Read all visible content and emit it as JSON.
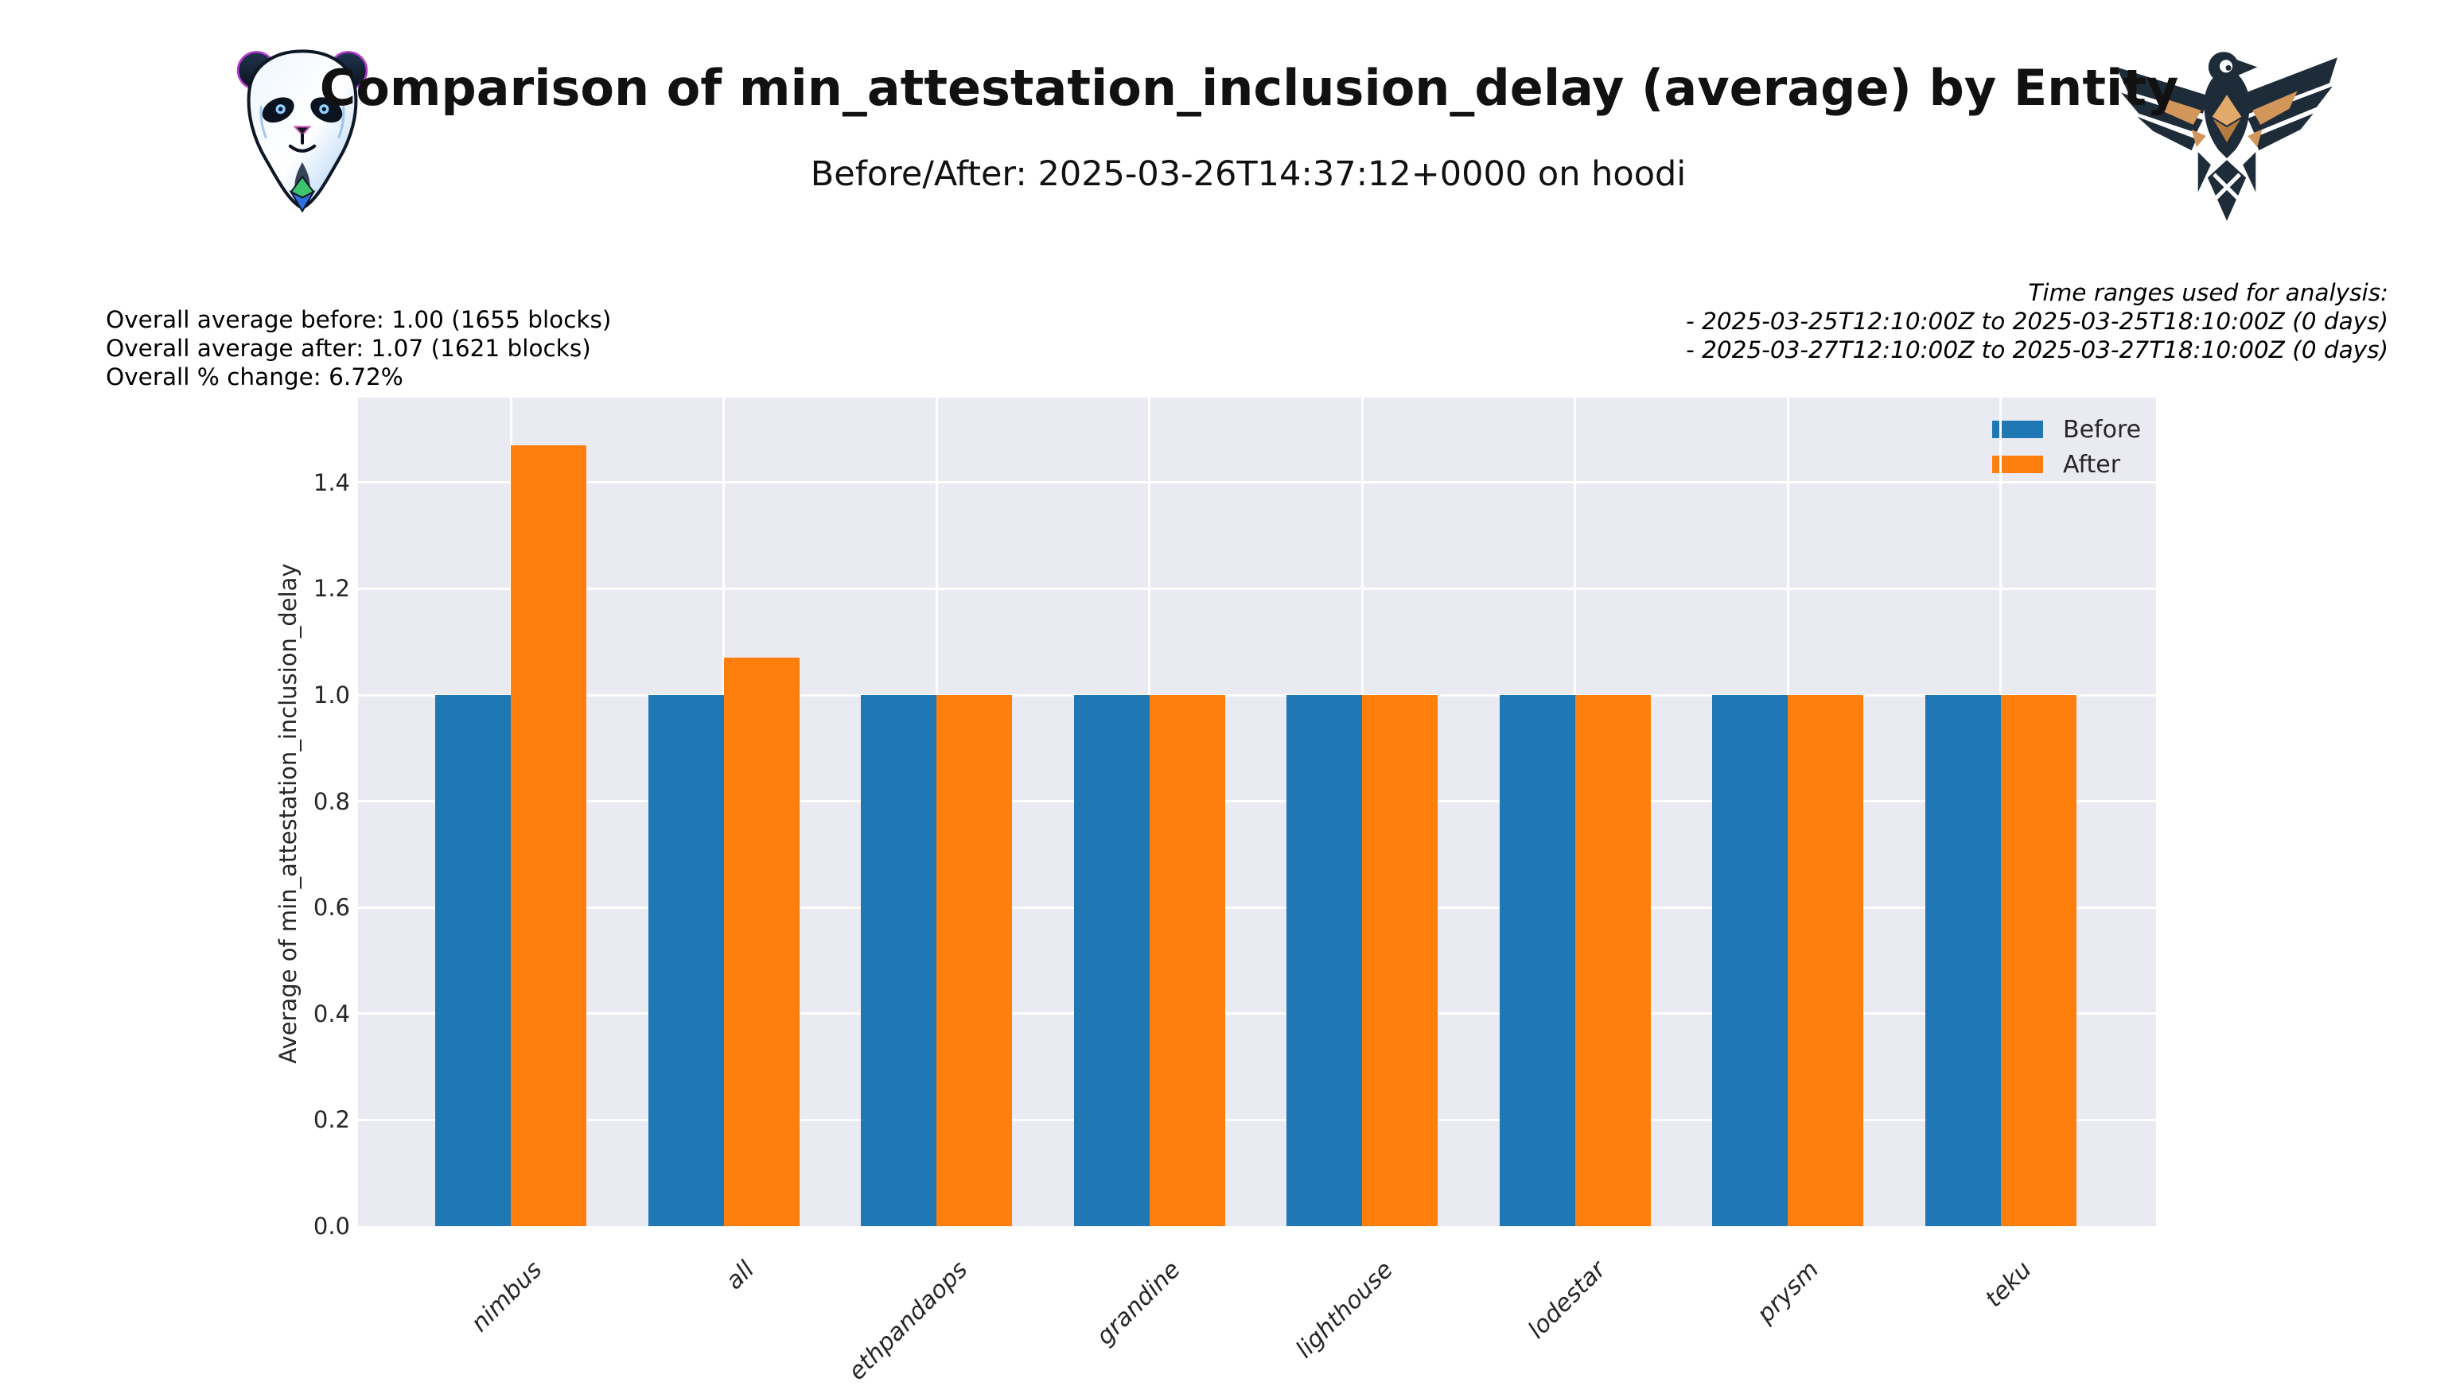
{
  "header": {
    "title": "Comparison of min_attestation_inclusion_delay (average) by Entity",
    "subtitle": "Before/After: 2025-03-26T14:37:12+0000 on hoodi"
  },
  "stats": {
    "line1": "Overall average before: 1.00 (1655 blocks)",
    "line2": "Overall average after: 1.07 (1621 blocks)",
    "line3": "Overall % change: 6.72%"
  },
  "time_ranges": {
    "heading": "Time ranges used for analysis:",
    "range1": "- 2025-03-25T12:10:00Z to 2025-03-25T18:10:00Z (0 days)",
    "range2": "- 2025-03-27T12:10:00Z to 2025-03-27T18:10:00Z (0 days)"
  },
  "chart_data": {
    "type": "bar",
    "title": "Comparison of min_attestation_inclusion_delay (average) by Entity",
    "subtitle": "Before/After: 2025-03-26T14:37:12+0000 on hoodi",
    "categories": [
      "nimbus",
      "all",
      "ethpandaops",
      "grandine",
      "lighthouse",
      "lodestar",
      "prysm",
      "teku"
    ],
    "series": [
      {
        "name": "Before",
        "color": "#1f77b4",
        "values": [
          1.0,
          1.0,
          1.0,
          1.0,
          1.0,
          1.0,
          1.0,
          1.0
        ]
      },
      {
        "name": "After",
        "color": "#ff7f0e",
        "values": [
          1.47,
          1.07,
          1.0,
          1.0,
          1.0,
          1.0,
          1.0,
          1.0
        ]
      }
    ],
    "xlabel": "",
    "ylabel": "Average of min_attestation_inclusion_delay",
    "yticks": [
      0.0,
      0.2,
      0.4,
      0.6,
      0.8,
      1.0,
      1.2,
      1.4
    ],
    "ylim": [
      0,
      1.56
    ],
    "grid": true,
    "legend_position": "upper right",
    "plot_bg": "#EAEAF2",
    "grid_color": "#ffffff"
  }
}
